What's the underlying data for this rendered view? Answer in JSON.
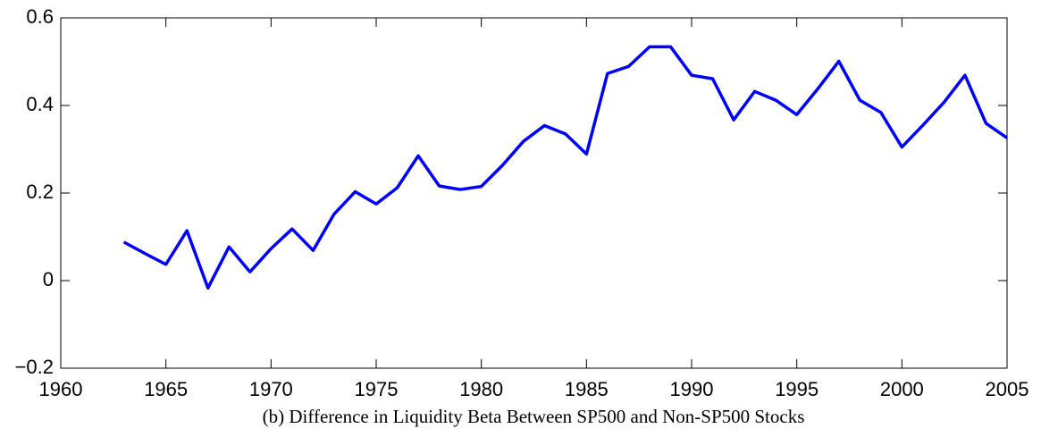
{
  "chart_data": {
    "type": "line",
    "title": "(b) Difference in Liquidity Beta Between SP500 and Non-SP500 Stocks",
    "x": [
      1963,
      1964,
      1965,
      1966,
      1967,
      1968,
      1969,
      1970,
      1971,
      1972,
      1973,
      1974,
      1975,
      1976,
      1977,
      1978,
      1979,
      1980,
      1981,
      1982,
      1983,
      1984,
      1985,
      1986,
      1987,
      1988,
      1989,
      1990,
      1991,
      1992,
      1993,
      1994,
      1995,
      1996,
      1997,
      1998,
      1999,
      2000,
      2001,
      2002,
      2003,
      2004,
      2005
    ],
    "series": [
      {
        "color": "#0000ff",
        "values": [
          0.088,
          0.062,
          0.037,
          0.114,
          -0.017,
          0.077,
          0.02,
          0.073,
          0.118,
          0.069,
          0.152,
          0.203,
          0.175,
          0.212,
          0.285,
          0.216,
          0.208,
          0.215,
          0.263,
          0.318,
          0.354,
          0.335,
          0.289,
          0.473,
          0.489,
          0.534,
          0.534,
          0.469,
          0.461,
          0.367,
          0.432,
          0.412,
          0.379,
          0.438,
          0.501,
          0.412,
          0.384,
          0.305,
          0.355,
          0.407,
          0.469,
          0.359,
          0.326
        ]
      }
    ],
    "xlim": [
      1960,
      2005
    ],
    "xticks": [
      1960,
      1965,
      1970,
      1975,
      1980,
      1985,
      1990,
      1995,
      2000,
      2005
    ],
    "ylim": [
      -0.2,
      0.6
    ],
    "yticks": [
      {
        "value": -0.2,
        "label": "−0.2"
      },
      0,
      0.2,
      0.4,
      0.6
    ]
  }
}
